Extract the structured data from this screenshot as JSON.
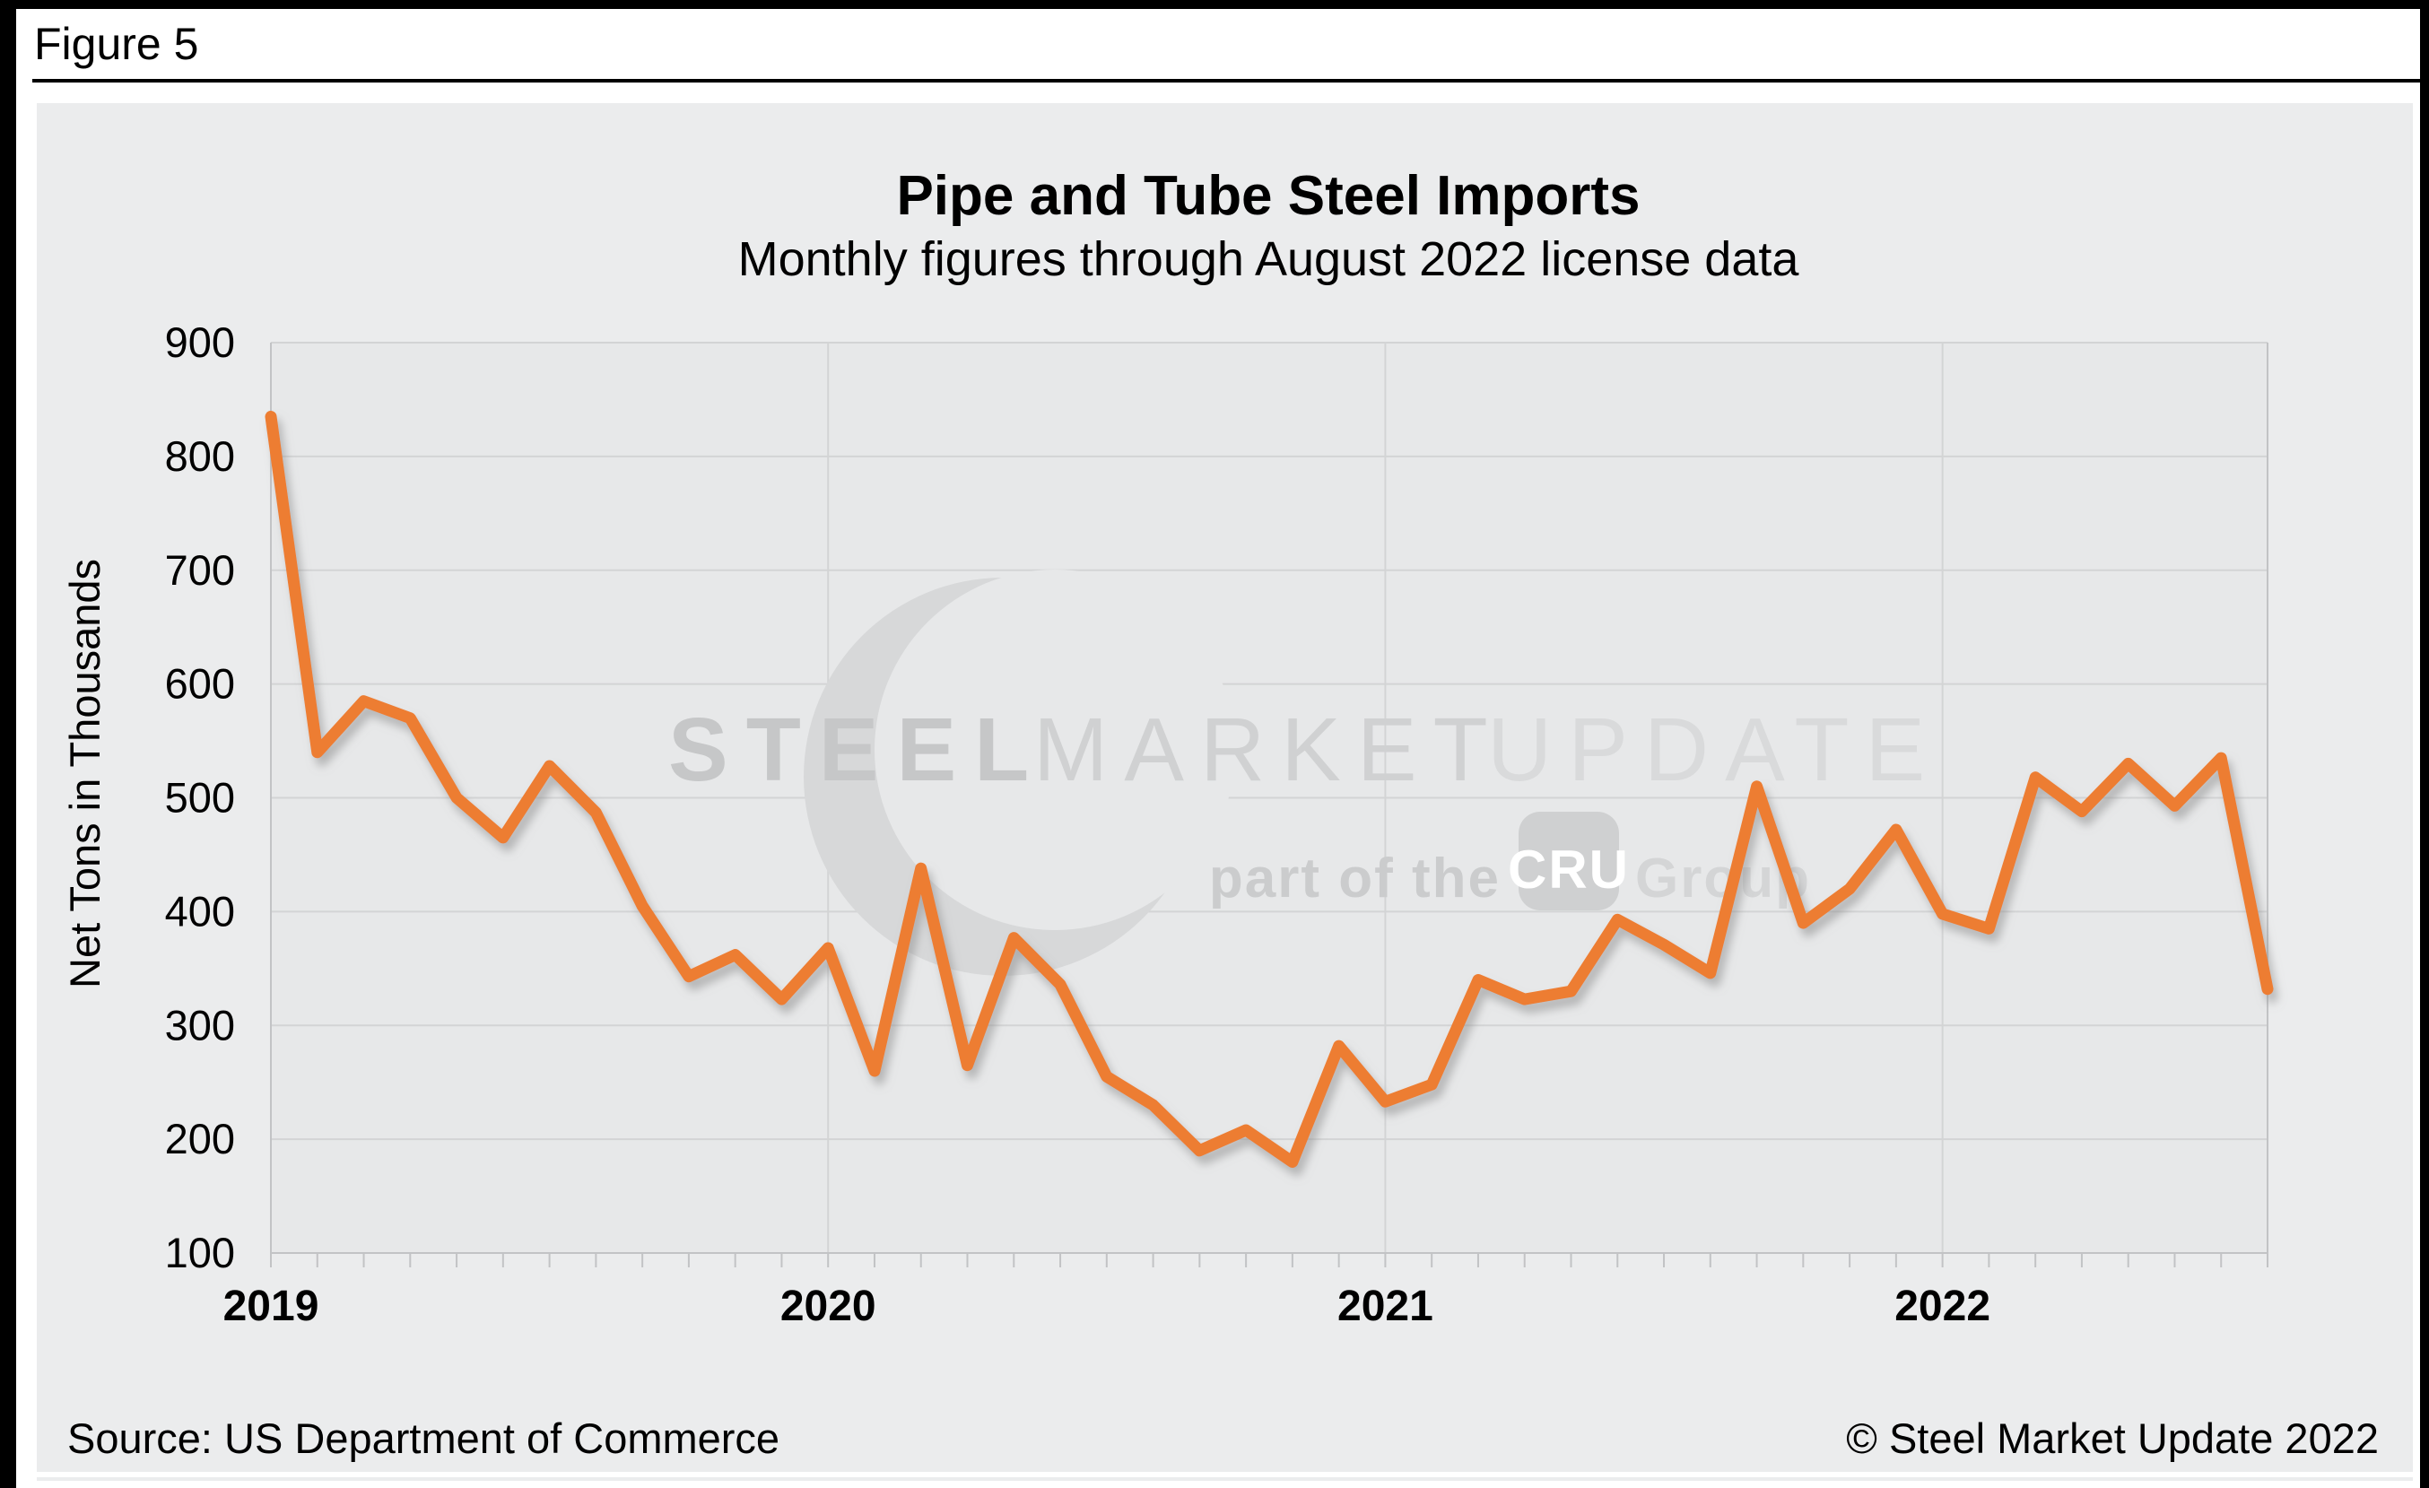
{
  "page": {
    "figure_label": "Figure 5"
  },
  "header": {
    "title": "Pipe and Tube Steel Imports",
    "subtitle": "Monthly figures through August 2022 license data"
  },
  "watermark": {
    "word1": "STEEL",
    "word2": "MARKET",
    "word3": "UPDATE",
    "line2_prefix": "part of the",
    "badge": "CRU",
    "line2_suffix": "Group",
    "crescent_icon_color": "#d7d8d9"
  },
  "footer": {
    "source": "Source: US Department of Commerce",
    "copyright": "© Steel Market Update 2022"
  },
  "colors": {
    "line": "#ED7D31",
    "plot_background": "#e7e8e9",
    "card_background": "#ebeced",
    "gridline": "#d3d4d5",
    "axis": "#c2c3c5",
    "text": "#000000"
  },
  "chart_data": {
    "type": "line",
    "title": "Pipe and Tube Steel Imports",
    "subtitle": "Monthly figures through August 2022 license data",
    "xlabel": "",
    "ylabel": "Net Tons in Thousands",
    "ylim": [
      100,
      900
    ],
    "ytick_step": 100,
    "ytick_labels": [
      "100",
      "200",
      "300",
      "400",
      "500",
      "600",
      "700",
      "800",
      "900"
    ],
    "grid": "horizontal gridlines + vertical year gridlines",
    "legend": "none",
    "x_start": "2019-01",
    "x_end": "2022-08",
    "year_ticks": [
      {
        "label": "2019",
        "month_index": 0
      },
      {
        "label": "2020",
        "month_index": 12
      },
      {
        "label": "2021",
        "month_index": 24
      },
      {
        "label": "2022",
        "month_index": 36
      }
    ],
    "series": [
      {
        "name": "Pipe and Tube Steel Imports (monthly, net tons in thousands)",
        "color": "#ED7D31",
        "values": [
          835,
          540,
          585,
          570,
          500,
          465,
          528,
          487,
          405,
          343,
          362,
          323,
          368,
          260,
          438,
          265,
          377,
          336,
          255,
          230,
          190,
          208,
          180,
          282,
          233,
          248,
          340,
          323,
          330,
          393,
          371,
          346,
          510,
          390,
          420,
          472,
          398,
          385,
          518,
          488,
          530,
          493,
          535,
          332
        ]
      }
    ]
  }
}
